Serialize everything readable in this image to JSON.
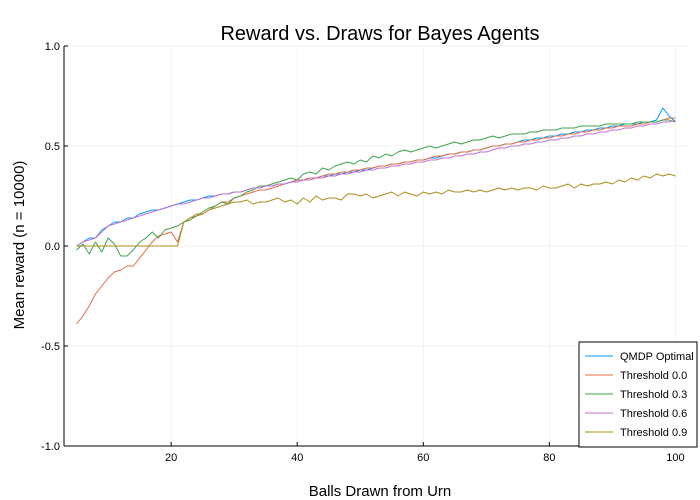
{
  "chart_data": {
    "type": "line",
    "title": "Reward vs. Draws for Bayes Agents",
    "xlabel": "Balls Drawn from Urn",
    "ylabel": "Mean reward (n = 10000)",
    "xlim": [
      3,
      102
    ],
    "ylim": [
      -1.0,
      1.0
    ],
    "xticks": [
      20,
      40,
      60,
      80,
      100
    ],
    "xtick_labels": [
      "20",
      "40",
      "60",
      "80",
      "100"
    ],
    "yticks": [
      -1.0,
      -0.5,
      0.0,
      0.5,
      1.0
    ],
    "ytick_labels": [
      "-1.0",
      "-0.5",
      "0.0",
      "0.5",
      "1.0"
    ],
    "grid": true,
    "legend_position": "bottom-right",
    "x": [
      5,
      6,
      7,
      8,
      9,
      10,
      11,
      12,
      13,
      14,
      15,
      16,
      17,
      18,
      19,
      20,
      21,
      22,
      23,
      24,
      25,
      26,
      27,
      28,
      29,
      30,
      31,
      32,
      33,
      34,
      35,
      36,
      37,
      38,
      39,
      40,
      41,
      42,
      43,
      44,
      45,
      46,
      47,
      48,
      49,
      50,
      51,
      52,
      53,
      54,
      55,
      56,
      57,
      58,
      59,
      60,
      61,
      62,
      63,
      64,
      65,
      66,
      67,
      68,
      69,
      70,
      71,
      72,
      73,
      74,
      75,
      76,
      77,
      78,
      79,
      80,
      81,
      82,
      83,
      84,
      85,
      86,
      87,
      88,
      89,
      90,
      91,
      92,
      93,
      94,
      95,
      96,
      97,
      98,
      99,
      100
    ],
    "series": [
      {
        "name": "QMDP Optimal",
        "color": "#009AFA",
        "values": [
          0.0,
          0.02,
          0.04,
          0.04,
          0.08,
          0.1,
          0.12,
          0.12,
          0.14,
          0.14,
          0.16,
          0.17,
          0.18,
          0.18,
          0.19,
          0.2,
          0.21,
          0.22,
          0.23,
          0.23,
          0.24,
          0.25,
          0.25,
          0.26,
          0.26,
          0.27,
          0.27,
          0.28,
          0.29,
          0.29,
          0.3,
          0.3,
          0.31,
          0.31,
          0.32,
          0.33,
          0.33,
          0.34,
          0.34,
          0.35,
          0.35,
          0.36,
          0.36,
          0.37,
          0.37,
          0.38,
          0.38,
          0.39,
          0.4,
          0.4,
          0.41,
          0.41,
          0.42,
          0.42,
          0.43,
          0.43,
          0.44,
          0.44,
          0.45,
          0.46,
          0.46,
          0.47,
          0.47,
          0.48,
          0.48,
          0.49,
          0.5,
          0.5,
          0.51,
          0.51,
          0.52,
          0.53,
          0.53,
          0.54,
          0.54,
          0.55,
          0.55,
          0.56,
          0.56,
          0.57,
          0.57,
          0.58,
          0.58,
          0.59,
          0.59,
          0.6,
          0.6,
          0.61,
          0.61,
          0.61,
          0.62,
          0.62,
          0.63,
          0.69,
          0.65,
          0.62
        ]
      },
      {
        "name": "Threshold 0.0",
        "color": "#E26F46",
        "values": [
          -0.39,
          -0.35,
          -0.3,
          -0.24,
          -0.2,
          -0.16,
          -0.13,
          -0.12,
          -0.1,
          -0.1,
          -0.06,
          -0.02,
          0.02,
          0.05,
          0.06,
          0.07,
          0.02,
          0.12,
          0.14,
          0.15,
          0.16,
          0.18,
          0.2,
          0.22,
          0.22,
          0.24,
          0.25,
          0.26,
          0.27,
          0.28,
          0.28,
          0.29,
          0.3,
          0.31,
          0.32,
          0.33,
          0.33,
          0.34,
          0.34,
          0.35,
          0.36,
          0.36,
          0.37,
          0.37,
          0.38,
          0.38,
          0.39,
          0.39,
          0.4,
          0.4,
          0.41,
          0.41,
          0.42,
          0.42,
          0.43,
          0.43,
          0.44,
          0.45,
          0.45,
          0.46,
          0.46,
          0.47,
          0.47,
          0.48,
          0.48,
          0.49,
          0.5,
          0.5,
          0.51,
          0.51,
          0.52,
          0.52,
          0.53,
          0.53,
          0.54,
          0.54,
          0.55,
          0.55,
          0.56,
          0.56,
          0.57,
          0.57,
          0.58,
          0.58,
          0.59,
          0.59,
          0.6,
          0.6,
          0.6,
          0.61,
          0.61,
          0.62,
          0.62,
          0.63,
          0.64,
          0.64
        ]
      },
      {
        "name": "Threshold 0.3",
        "color": "#3DA44D",
        "values": [
          -0.02,
          0.01,
          -0.04,
          0.02,
          -0.03,
          0.04,
          0.01,
          -0.05,
          -0.05,
          -0.02,
          0.02,
          0.04,
          0.07,
          0.04,
          0.08,
          0.09,
          0.1,
          0.12,
          0.13,
          0.15,
          0.17,
          0.19,
          0.2,
          0.22,
          0.21,
          0.24,
          0.25,
          0.27,
          0.28,
          0.3,
          0.3,
          0.31,
          0.32,
          0.33,
          0.34,
          0.33,
          0.36,
          0.37,
          0.36,
          0.39,
          0.38,
          0.4,
          0.41,
          0.42,
          0.41,
          0.43,
          0.42,
          0.45,
          0.44,
          0.46,
          0.45,
          0.47,
          0.48,
          0.47,
          0.48,
          0.49,
          0.5,
          0.49,
          0.5,
          0.51,
          0.52,
          0.51,
          0.52,
          0.53,
          0.53,
          0.54,
          0.55,
          0.54,
          0.55,
          0.56,
          0.56,
          0.56,
          0.57,
          0.57,
          0.58,
          0.58,
          0.58,
          0.59,
          0.59,
          0.59,
          0.6,
          0.6,
          0.6,
          0.6,
          0.61,
          0.61,
          0.61,
          0.61,
          0.61,
          0.62,
          0.62,
          0.62,
          0.62,
          0.63,
          0.63,
          0.62
        ]
      },
      {
        "name": "Threshold 0.6",
        "color": "#C271D2",
        "values": [
          0.0,
          0.02,
          0.03,
          0.04,
          0.07,
          0.1,
          0.11,
          0.12,
          0.13,
          0.14,
          0.15,
          0.16,
          0.17,
          0.18,
          0.19,
          0.2,
          0.21,
          0.21,
          0.22,
          0.23,
          0.24,
          0.24,
          0.25,
          0.26,
          0.26,
          0.27,
          0.27,
          0.28,
          0.29,
          0.29,
          0.3,
          0.3,
          0.31,
          0.31,
          0.32,
          0.32,
          0.33,
          0.33,
          0.34,
          0.34,
          0.35,
          0.35,
          0.36,
          0.36,
          0.37,
          0.37,
          0.38,
          0.38,
          0.39,
          0.39,
          0.4,
          0.4,
          0.41,
          0.41,
          0.42,
          0.42,
          0.43,
          0.43,
          0.44,
          0.44,
          0.45,
          0.45,
          0.46,
          0.46,
          0.47,
          0.47,
          0.48,
          0.49,
          0.49,
          0.5,
          0.5,
          0.51,
          0.51,
          0.52,
          0.52,
          0.53,
          0.53,
          0.54,
          0.54,
          0.55,
          0.55,
          0.56,
          0.56,
          0.57,
          0.57,
          0.58,
          0.58,
          0.59,
          0.59,
          0.6,
          0.6,
          0.61,
          0.61,
          0.62,
          0.62,
          0.63
        ]
      },
      {
        "name": "Threshold 0.9",
        "color": "#AC8D18",
        "values": [
          0.0,
          0.0,
          0.0,
          0.0,
          0.0,
          0.0,
          0.0,
          0.0,
          0.0,
          0.0,
          0.0,
          0.0,
          0.0,
          0.0,
          0.0,
          0.0,
          0.0,
          0.12,
          0.14,
          0.16,
          0.16,
          0.18,
          0.19,
          0.2,
          0.21,
          0.22,
          0.22,
          0.23,
          0.21,
          0.22,
          0.22,
          0.23,
          0.24,
          0.22,
          0.23,
          0.21,
          0.24,
          0.22,
          0.25,
          0.23,
          0.24,
          0.24,
          0.23,
          0.26,
          0.26,
          0.25,
          0.26,
          0.24,
          0.25,
          0.26,
          0.27,
          0.25,
          0.27,
          0.26,
          0.25,
          0.27,
          0.26,
          0.27,
          0.26,
          0.28,
          0.27,
          0.27,
          0.28,
          0.27,
          0.28,
          0.27,
          0.28,
          0.29,
          0.28,
          0.29,
          0.28,
          0.29,
          0.29,
          0.28,
          0.3,
          0.29,
          0.29,
          0.3,
          0.31,
          0.29,
          0.31,
          0.3,
          0.31,
          0.31,
          0.32,
          0.31,
          0.33,
          0.32,
          0.34,
          0.33,
          0.35,
          0.34,
          0.36,
          0.35,
          0.36,
          0.35
        ]
      }
    ]
  }
}
